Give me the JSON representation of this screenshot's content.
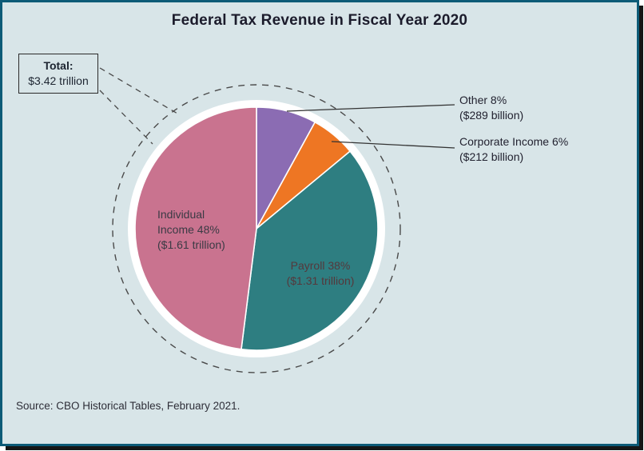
{
  "title": "Federal Tax Revenue in Fiscal Year 2020",
  "total_box": {
    "label": "Total:",
    "value": "$3.42 trillion"
  },
  "labels": {
    "individual": [
      "Individual",
      "Income 48%",
      "($1.61 trillion)"
    ],
    "payroll": [
      "Payroll 38%",
      "($1.31 trillion)"
    ],
    "other": [
      "Other 8%",
      "($289 billion)"
    ],
    "corporate": [
      "Corporate Income 6%",
      "($212 billion)"
    ]
  },
  "source": "Source: CBO Historical Tables, February 2021.",
  "colors": {
    "background": "#d8e5e8",
    "frame_border": "#0d5b77",
    "dashed_guides": "#4a4a4a",
    "leader_lines": "#333333",
    "pie_backing": "#ffffff"
  },
  "chart_data": {
    "type": "pie",
    "title": "Federal Tax Revenue in Fiscal Year 2020",
    "total_text": "Total: $3.42 trillion",
    "total_billions": 3420,
    "start_angle_deg": 0,
    "direction": "clockwise",
    "legend": "none",
    "slices": [
      {
        "label": "Other",
        "percent": 8,
        "amount": "$289 billion",
        "value_billions": 289,
        "color": "#8b6cb3",
        "label_style": "outside-right-callout"
      },
      {
        "label": "Corporate Income",
        "percent": 6,
        "amount": "$212 billion",
        "value_billions": 212,
        "color": "#ee7623",
        "label_style": "outside-right-callout"
      },
      {
        "label": "Payroll",
        "percent": 38,
        "amount": "$1.31 trillion",
        "value_billions": 1310,
        "color": "#2e7e81",
        "label_style": "inside"
      },
      {
        "label": "Individual Income",
        "percent": 48,
        "amount": "$1.61 trillion",
        "value_billions": 1610,
        "color": "#c9738f",
        "label_style": "inside"
      }
    ],
    "source": "Source: CBO Historical Tables, February 2021."
  }
}
